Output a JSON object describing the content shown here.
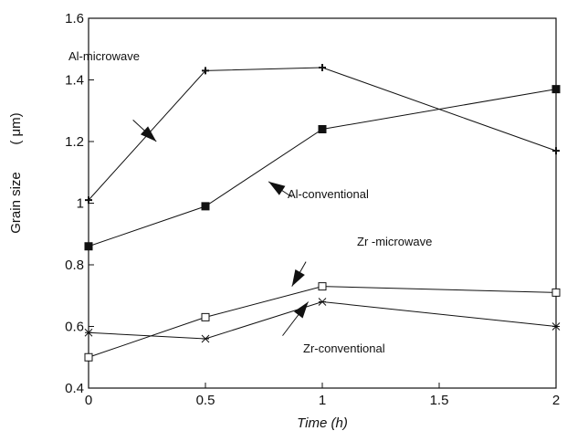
{
  "chart_data": {
    "type": "line",
    "title": "",
    "xlabel": "Time (h)",
    "ylabel": "Grain size",
    "ylabel_unit": "( μm)",
    "xlim": [
      0,
      2
    ],
    "ylim": [
      0.4,
      1.6
    ],
    "xticks": [
      0,
      0.5,
      1,
      1.5,
      2
    ],
    "xtick_labels": [
      "0",
      "0.5",
      "1",
      "1.5",
      "2"
    ],
    "yticks": [
      0.4,
      0.6,
      0.8,
      1.0,
      1.2,
      1.4,
      1.6
    ],
    "ytick_labels": [
      "0.4",
      "0.6",
      "0.8",
      "1",
      "1.2",
      "1.4",
      "1.6"
    ],
    "grid": false,
    "legend": "none",
    "series": [
      {
        "name": "Al-microwave",
        "marker": "plus",
        "x": [
          0,
          0.5,
          1,
          2
        ],
        "y": [
          1.01,
          1.43,
          1.44,
          1.17
        ]
      },
      {
        "name": "Al-conventional",
        "marker": "filled-square",
        "x": [
          0,
          0.5,
          1,
          2
        ],
        "y": [
          0.86,
          0.99,
          1.24,
          1.37
        ]
      },
      {
        "name": "Zr -microwave",
        "marker": "open-square",
        "x": [
          0,
          0.5,
          1,
          2
        ],
        "y": [
          0.5,
          0.63,
          0.73,
          0.71
        ]
      },
      {
        "name": "Zr-conventional",
        "marker": "asterisk",
        "x": [
          0,
          0.5,
          1,
          2
        ],
        "y": [
          0.58,
          0.56,
          0.68,
          0.6
        ]
      }
    ],
    "annotations": [
      {
        "text": "Al-microwave",
        "series": 0
      },
      {
        "text": "Al-conventional",
        "series": 1
      },
      {
        "text": "Zr -microwave",
        "series": 2
      },
      {
        "text": "Zr-conventional",
        "series": 3
      }
    ]
  }
}
